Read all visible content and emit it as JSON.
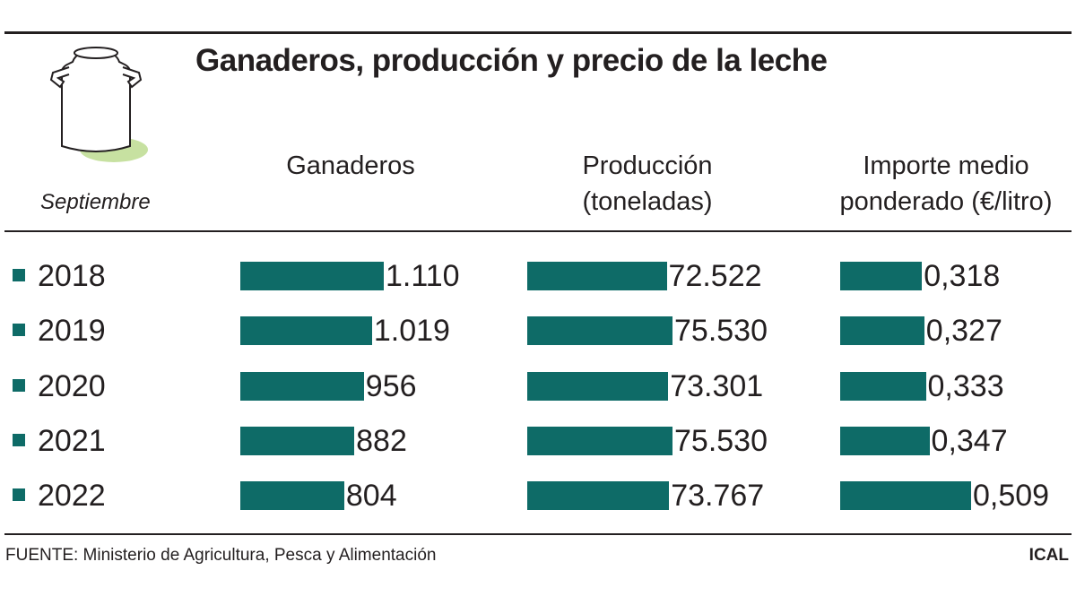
{
  "title": "Ganaderos, producción y precio de la leche",
  "subtitle": "Septiembre",
  "source": "FUENTE: Ministerio de Agricultura, Pesca y Alimentación",
  "credit": "ICAL",
  "chart_data": {
    "type": "bar",
    "categories": [
      "2018",
      "2019",
      "2020",
      "2021",
      "2022"
    ],
    "series": [
      {
        "name": "Ganaderos",
        "color": "#0e6b67",
        "values": [
          1110,
          1019,
          956,
          882,
          804
        ],
        "value_labels": [
          "1.110",
          "1.019",
          "956",
          "882",
          "804"
        ]
      },
      {
        "name": "Producción (toneladas)",
        "color": "#0e6b67",
        "values": [
          72522,
          75530,
          73301,
          75530,
          73767
        ],
        "value_labels": [
          "72.522",
          "75.530",
          "73.301",
          "75.530",
          "73.767"
        ]
      },
      {
        "name": "Importe medio ponderado (€/litro)",
        "color": "#0e6b67",
        "values": [
          0.318,
          0.327,
          0.333,
          0.347,
          0.509
        ],
        "value_labels": [
          "0,318",
          "0,327",
          "0,333",
          "0,347",
          "0,509"
        ]
      }
    ]
  }
}
